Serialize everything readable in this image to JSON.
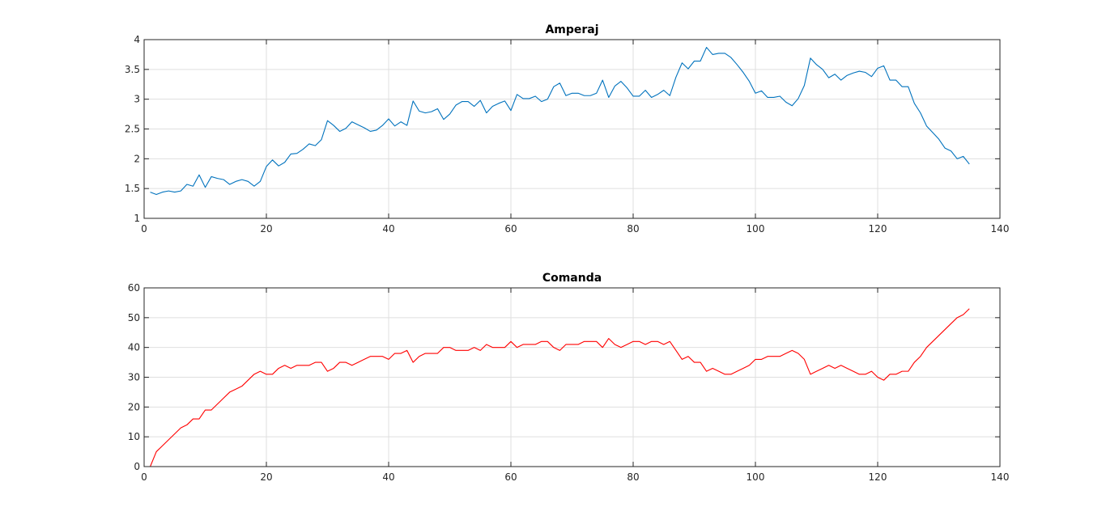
{
  "chart_data": [
    {
      "type": "line",
      "title": "Amperaj",
      "xlabel": "",
      "ylabel": "",
      "xlim": [
        0,
        140
      ],
      "ylim": [
        1,
        4
      ],
      "xticks": [
        0,
        20,
        40,
        60,
        80,
        100,
        120,
        140
      ],
      "yticks": [
        1,
        1.5,
        2,
        2.5,
        3,
        3.5,
        4
      ],
      "xtick_labels": [
        "0",
        "20",
        "40",
        "60",
        "80",
        "100",
        "120",
        "140"
      ],
      "ytick_labels": [
        "1",
        "1.5",
        "2",
        "2.5",
        "3",
        "3.5",
        "4"
      ],
      "grid": true,
      "color": "#0072bd",
      "x": [
        1,
        2,
        3,
        4,
        5,
        6,
        7,
        8,
        9,
        10,
        11,
        12,
        13,
        14,
        15,
        16,
        17,
        18,
        19,
        20,
        21,
        22,
        23,
        24,
        25,
        26,
        27,
        28,
        29,
        30,
        31,
        32,
        33,
        34,
        35,
        36,
        37,
        38,
        39,
        40,
        41,
        42,
        43,
        44,
        45,
        46,
        47,
        48,
        49,
        50,
        51,
        52,
        53,
        54,
        55,
        56,
        57,
        58,
        59,
        60,
        61,
        62,
        63,
        64,
        65,
        66,
        67,
        68,
        69,
        70,
        71,
        72,
        73,
        74,
        75,
        76,
        77,
        78,
        79,
        80,
        81,
        82,
        83,
        84,
        85,
        86,
        87,
        88,
        89,
        90,
        91,
        92,
        93,
        94,
        95,
        96,
        97,
        98,
        99,
        100,
        101,
        102,
        103,
        104,
        105,
        106,
        107,
        108,
        109,
        110,
        111,
        112,
        113,
        114,
        115,
        116,
        117,
        118,
        119,
        120,
        121,
        122,
        123,
        124,
        125,
        126,
        127,
        128,
        129,
        130,
        131,
        132,
        133,
        134,
        135
      ],
      "values": [
        1.44,
        1.4,
        1.44,
        1.46,
        1.44,
        1.46,
        1.57,
        1.54,
        1.73,
        1.52,
        1.7,
        1.67,
        1.65,
        1.57,
        1.62,
        1.65,
        1.62,
        1.54,
        1.62,
        1.87,
        1.98,
        1.88,
        1.94,
        2.08,
        2.09,
        2.16,
        2.25,
        2.22,
        2.32,
        2.64,
        2.56,
        2.46,
        2.51,
        2.62,
        2.57,
        2.52,
        2.46,
        2.48,
        2.56,
        2.67,
        2.55,
        2.62,
        2.56,
        2.97,
        2.8,
        2.77,
        2.79,
        2.84,
        2.66,
        2.75,
        2.9,
        2.96,
        2.96,
        2.88,
        2.98,
        2.77,
        2.88,
        2.93,
        2.97,
        2.81,
        3.08,
        3.01,
        3.01,
        3.05,
        2.96,
        3.0,
        3.21,
        3.27,
        3.06,
        3.1,
        3.1,
        3.06,
        3.06,
        3.1,
        3.32,
        3.03,
        3.22,
        3.3,
        3.19,
        3.05,
        3.05,
        3.15,
        3.03,
        3.08,
        3.15,
        3.06,
        3.37,
        3.61,
        3.51,
        3.64,
        3.64,
        3.87,
        3.75,
        3.77,
        3.77,
        3.7,
        3.58,
        3.45,
        3.3,
        3.1,
        3.14,
        3.03,
        3.03,
        3.05,
        2.95,
        2.89,
        3.01,
        3.23,
        3.69,
        3.58,
        3.5,
        3.36,
        3.42,
        3.32,
        3.4,
        3.44,
        3.47,
        3.45,
        3.38,
        3.52,
        3.56,
        3.32,
        3.32,
        3.21,
        3.21,
        2.93,
        2.77,
        2.55,
        2.44,
        2.33,
        2.18,
        2.13,
        2.0,
        2.04,
        1.91
      ]
    },
    {
      "type": "line",
      "title": "Comanda",
      "xlabel": "",
      "ylabel": "",
      "xlim": [
        0,
        140
      ],
      "ylim": [
        0,
        60
      ],
      "xticks": [
        0,
        20,
        40,
        60,
        80,
        100,
        120,
        140
      ],
      "yticks": [
        0,
        10,
        20,
        30,
        40,
        50,
        60
      ],
      "xtick_labels": [
        "0",
        "20",
        "40",
        "60",
        "80",
        "100",
        "120",
        "140"
      ],
      "ytick_labels": [
        "0",
        "10",
        "20",
        "30",
        "40",
        "50",
        "60"
      ],
      "grid": true,
      "color": "#ff0000",
      "x": [
        1,
        2,
        3,
        4,
        5,
        6,
        7,
        8,
        9,
        10,
        11,
        12,
        13,
        14,
        15,
        16,
        17,
        18,
        19,
        20,
        21,
        22,
        23,
        24,
        25,
        26,
        27,
        28,
        29,
        30,
        31,
        32,
        33,
        34,
        35,
        36,
        37,
        38,
        39,
        40,
        41,
        42,
        43,
        44,
        45,
        46,
        47,
        48,
        49,
        50,
        51,
        52,
        53,
        54,
        55,
        56,
        57,
        58,
        59,
        60,
        61,
        62,
        63,
        64,
        65,
        66,
        67,
        68,
        69,
        70,
        71,
        72,
        73,
        74,
        75,
        76,
        77,
        78,
        79,
        80,
        81,
        82,
        83,
        84,
        85,
        86,
        87,
        88,
        89,
        90,
        91,
        92,
        93,
        94,
        95,
        96,
        97,
        98,
        99,
        100,
        101,
        102,
        103,
        104,
        105,
        106,
        107,
        108,
        109,
        110,
        111,
        112,
        113,
        114,
        115,
        116,
        117,
        118,
        119,
        120,
        121,
        122,
        123,
        124,
        125,
        126,
        127,
        128,
        129,
        130,
        131,
        132,
        133,
        134,
        135
      ],
      "values": [
        0,
        5,
        7,
        9,
        11,
        13,
        14,
        16,
        16,
        19,
        19,
        21,
        23,
        25,
        26,
        27,
        29,
        31,
        32,
        31,
        31,
        33,
        34,
        33,
        34,
        34,
        34,
        35,
        35,
        32,
        33,
        35,
        35,
        34,
        35,
        36,
        37,
        37,
        37,
        36,
        38,
        38,
        39,
        35,
        37,
        38,
        38,
        38,
        40,
        40,
        39,
        39,
        39,
        40,
        39,
        41,
        40,
        40,
        40,
        42,
        40,
        41,
        41,
        41,
        42,
        42,
        40,
        39,
        41,
        41,
        41,
        42,
        42,
        42,
        40,
        43,
        41,
        40,
        41,
        42,
        42,
        41,
        42,
        42,
        41,
        42,
        39,
        36,
        37,
        35,
        35,
        32,
        33,
        32,
        31,
        31,
        32,
        33,
        34,
        36,
        36,
        37,
        37,
        37,
        38,
        39,
        38,
        36,
        31,
        32,
        33,
        34,
        33,
        34,
        33,
        32,
        31,
        31,
        32,
        30,
        29,
        31,
        31,
        32,
        32,
        35,
        37,
        40,
        42,
        44,
        46,
        48,
        50,
        51,
        53
      ]
    }
  ]
}
